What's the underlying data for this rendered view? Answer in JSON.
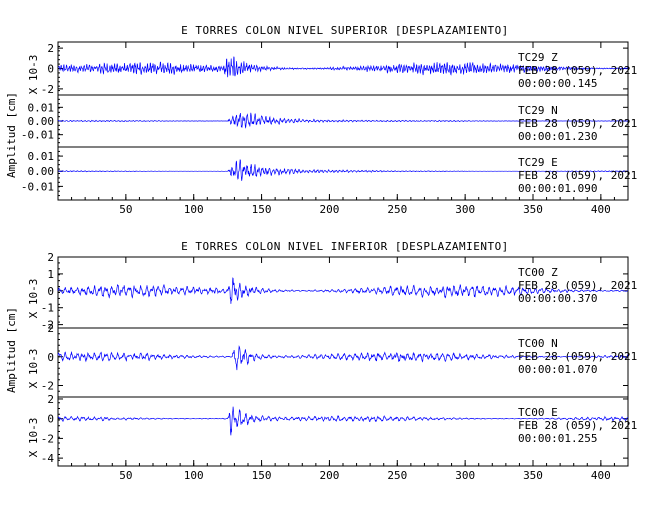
{
  "colors": {
    "trace": "#0000ff",
    "axis": "#000000",
    "background": "#ffffff"
  },
  "chart_data": [
    {
      "type": "line",
      "title": "E TORRES COLON NIVEL SUPERIOR [DESPLAZAMIENTO]",
      "ylabel": "Amplitud [cm]",
      "xlim": [
        0,
        420
      ],
      "x_ticks": [
        "50",
        "100",
        "150",
        "200",
        "250",
        "300",
        "350",
        "400"
      ],
      "traces": [
        {
          "station": "TC29",
          "component": "Z",
          "date": "FEB 28 (059), 2021",
          "time": "00:00:00.145",
          "multiplier": "X 10-3",
          "ylim": [
            -2.6,
            2.6
          ],
          "y_ticks": [
            "2",
            "0",
            "-2"
          ],
          "amplitude": 0.9,
          "burst": [
            122,
            180
          ],
          "burst_gain": 2.2,
          "frequency": "high"
        },
        {
          "station": "TC29",
          "component": "N",
          "date": "FEB 28 (059), 2021",
          "time": "00:00:01.230",
          "multiplier": "",
          "ylim": [
            -0.019,
            0.019
          ],
          "y_ticks": [
            "0.01",
            "0.00",
            "-0.01"
          ],
          "amplitude": 0.0007,
          "burst": [
            125,
            235
          ],
          "burst_gain": 0.015,
          "frequency": "medium"
        },
        {
          "station": "TC29",
          "component": "E",
          "date": "FEB 28 (059), 2021",
          "time": "00:00:01.090",
          "multiplier": "",
          "ylim": [
            -0.019,
            0.016
          ],
          "y_ticks": [
            "0.01",
            "0.00",
            "-0.01"
          ],
          "amplitude": 0.0006,
          "burst": [
            125,
            240
          ],
          "burst_gain": 0.013,
          "frequency": "medium"
        }
      ]
    },
    {
      "type": "line",
      "title": "E TORRES COLON NIVEL INFERIOR [DESPLAZAMIENTO]",
      "ylabel": "Amplitud [cm]",
      "xlim": [
        0,
        420
      ],
      "x_ticks": [
        "50",
        "100",
        "150",
        "200",
        "250",
        "300",
        "350",
        "400"
      ],
      "traces": [
        {
          "station": "TC00",
          "component": "Z",
          "date": "FEB 28 (059), 2021",
          "time": "00:00:00.370",
          "multiplier": "X 10-3",
          "ylim": [
            -2.2,
            2.0
          ],
          "y_ticks": [
            "2",
            "1",
            "0",
            "-1",
            "-2"
          ],
          "amplitude": 0.45,
          "burst": [
            125,
            175
          ],
          "burst_gain": 1.2,
          "frequency": "low"
        },
        {
          "station": "TC00",
          "component": "N",
          "date": "FEB 28 (059), 2021",
          "time": "00:00:01.070",
          "multiplier": "X 10-3",
          "ylim": [
            -2.8,
            2.0
          ],
          "y_ticks": [
            "2",
            "0",
            "-2"
          ],
          "amplitude": 0.4,
          "burst": [
            128,
            170
          ],
          "burst_gain": 1.8,
          "frequency": "low"
        },
        {
          "station": "TC00",
          "component": "E",
          "date": "FEB 28 (059), 2021",
          "time": "00:00:01.255",
          "multiplier": "X 10-3",
          "ylim": [
            -4.8,
            2.2
          ],
          "y_ticks": [
            "2",
            "0",
            "-2",
            "-4"
          ],
          "amplitude": 0.35,
          "burst": [
            125,
            170
          ],
          "burst_gain": 2.6,
          "frequency": "low"
        }
      ]
    }
  ]
}
